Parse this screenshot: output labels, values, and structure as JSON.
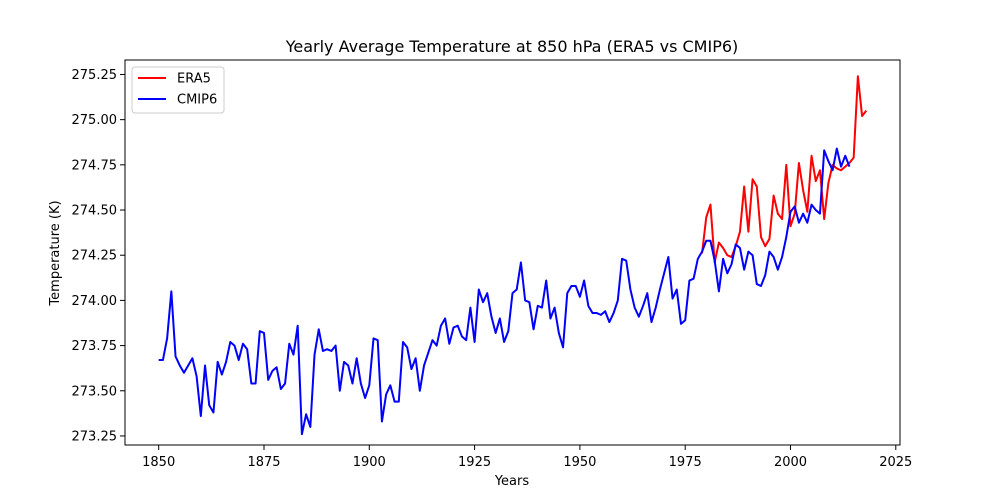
{
  "chart_data": {
    "type": "line",
    "title": "Yearly Average Temperature at 850 hPa (ERA5 vs CMIP6)",
    "xlabel": "Years",
    "ylabel": "Temperature (K)",
    "xlim": [
      1842,
      2026
    ],
    "ylim": [
      273.2,
      275.33
    ],
    "xticks": [
      1850,
      1875,
      1900,
      1925,
      1950,
      1975,
      2000,
      2025
    ],
    "yticks": [
      273.25,
      273.5,
      273.75,
      274.0,
      274.25,
      274.5,
      274.75,
      275.0,
      275.25
    ],
    "grid": false,
    "legend_position": "top-left",
    "series": [
      {
        "name": "ERA5",
        "color": "#ff0000",
        "x": [
          1979,
          1980,
          1981,
          1982,
          1983,
          1984,
          1985,
          1986,
          1987,
          1988,
          1989,
          1990,
          1991,
          1992,
          1993,
          1994,
          1995,
          1996,
          1997,
          1998,
          1999,
          2000,
          2001,
          2002,
          2003,
          2004,
          2005,
          2006,
          2007,
          2008,
          2009,
          2010,
          2011,
          2012,
          2013,
          2014,
          2015,
          2016,
          2017,
          2018
        ],
        "values": [
          274.26,
          274.46,
          274.53,
          274.21,
          274.32,
          274.29,
          274.25,
          274.24,
          274.3,
          274.38,
          274.63,
          274.38,
          274.67,
          274.63,
          274.35,
          274.3,
          274.34,
          274.58,
          274.48,
          274.45,
          274.75,
          274.41,
          274.48,
          274.76,
          274.61,
          274.49,
          274.8,
          274.66,
          274.72,
          274.45,
          274.65,
          274.75,
          274.73,
          274.72,
          274.74,
          274.76,
          274.79,
          275.24,
          275.02,
          275.05
        ]
      },
      {
        "name": "CMIP6",
        "color": "#0000ff",
        "x": [
          1850,
          1851,
          1852,
          1853,
          1854,
          1855,
          1856,
          1857,
          1858,
          1859,
          1860,
          1861,
          1862,
          1863,
          1864,
          1865,
          1866,
          1867,
          1868,
          1869,
          1870,
          1871,
          1872,
          1873,
          1874,
          1875,
          1876,
          1877,
          1878,
          1879,
          1880,
          1881,
          1882,
          1883,
          1884,
          1885,
          1886,
          1887,
          1888,
          1889,
          1890,
          1891,
          1892,
          1893,
          1894,
          1895,
          1896,
          1897,
          1898,
          1899,
          1900,
          1901,
          1902,
          1903,
          1904,
          1905,
          1906,
          1907,
          1908,
          1909,
          1910,
          1911,
          1912,
          1913,
          1914,
          1915,
          1916,
          1917,
          1918,
          1919,
          1920,
          1921,
          1922,
          1923,
          1924,
          1925,
          1926,
          1927,
          1928,
          1929,
          1930,
          1931,
          1932,
          1933,
          1934,
          1935,
          1936,
          1937,
          1938,
          1939,
          1940,
          1941,
          1942,
          1943,
          1944,
          1945,
          1946,
          1947,
          1948,
          1949,
          1950,
          1951,
          1952,
          1953,
          1954,
          1955,
          1956,
          1957,
          1958,
          1959,
          1960,
          1961,
          1962,
          1963,
          1964,
          1965,
          1966,
          1967,
          1968,
          1969,
          1970,
          1971,
          1972,
          1973,
          1974,
          1975,
          1976,
          1977,
          1978,
          1979,
          1980,
          1981,
          1982,
          1983,
          1984,
          1985,
          1986,
          1987,
          1988,
          1989,
          1990,
          1991,
          1992,
          1993,
          1994,
          1995,
          1996,
          1997,
          1998,
          1999,
          2000,
          2001,
          2002,
          2003,
          2004,
          2005,
          2006,
          2007,
          2008,
          2009,
          2010,
          2011,
          2012,
          2013,
          2014
        ],
        "values": [
          273.67,
          273.67,
          273.79,
          274.05,
          273.69,
          273.64,
          273.6,
          273.64,
          273.68,
          273.58,
          273.36,
          273.64,
          273.42,
          273.38,
          273.66,
          273.59,
          273.66,
          273.77,
          273.75,
          273.67,
          273.76,
          273.73,
          273.54,
          273.54,
          273.83,
          273.82,
          273.56,
          273.61,
          273.63,
          273.51,
          273.54,
          273.76,
          273.7,
          273.86,
          273.26,
          273.37,
          273.3,
          273.7,
          273.84,
          273.72,
          273.73,
          273.72,
          273.75,
          273.5,
          273.66,
          273.64,
          273.54,
          273.68,
          273.54,
          273.46,
          273.53,
          273.79,
          273.78,
          273.33,
          273.48,
          273.53,
          273.44,
          273.44,
          273.77,
          273.74,
          273.62,
          273.68,
          273.5,
          273.64,
          273.71,
          273.78,
          273.75,
          273.86,
          273.9,
          273.76,
          273.85,
          273.86,
          273.8,
          273.78,
          273.96,
          273.77,
          274.06,
          273.99,
          274.04,
          273.91,
          273.82,
          273.9,
          273.77,
          273.83,
          274.04,
          274.06,
          274.21,
          274.0,
          273.99,
          273.84,
          273.97,
          273.96,
          274.11,
          273.9,
          273.96,
          273.82,
          273.74,
          274.04,
          274.08,
          274.08,
          274.02,
          274.11,
          273.97,
          273.93,
          273.93,
          273.92,
          273.94,
          273.88,
          273.93,
          274.0,
          274.23,
          274.22,
          274.06,
          273.96,
          273.91,
          273.97,
          274.04,
          273.88,
          273.96,
          274.06,
          274.15,
          274.24,
          274.01,
          274.06,
          273.87,
          273.89,
          274.11,
          274.12,
          274.23,
          274.27,
          274.33,
          274.33,
          274.22,
          274.05,
          274.23,
          274.15,
          274.2,
          274.31,
          274.29,
          274.17,
          274.27,
          274.25,
          274.09,
          274.08,
          274.14,
          274.27,
          274.24,
          274.17,
          274.24,
          274.35,
          274.49,
          274.52,
          274.43,
          274.48,
          274.43,
          274.53,
          274.5,
          274.48,
          274.83,
          274.77,
          274.72,
          274.84,
          274.74,
          274.8,
          274.74
        ]
      }
    ]
  }
}
